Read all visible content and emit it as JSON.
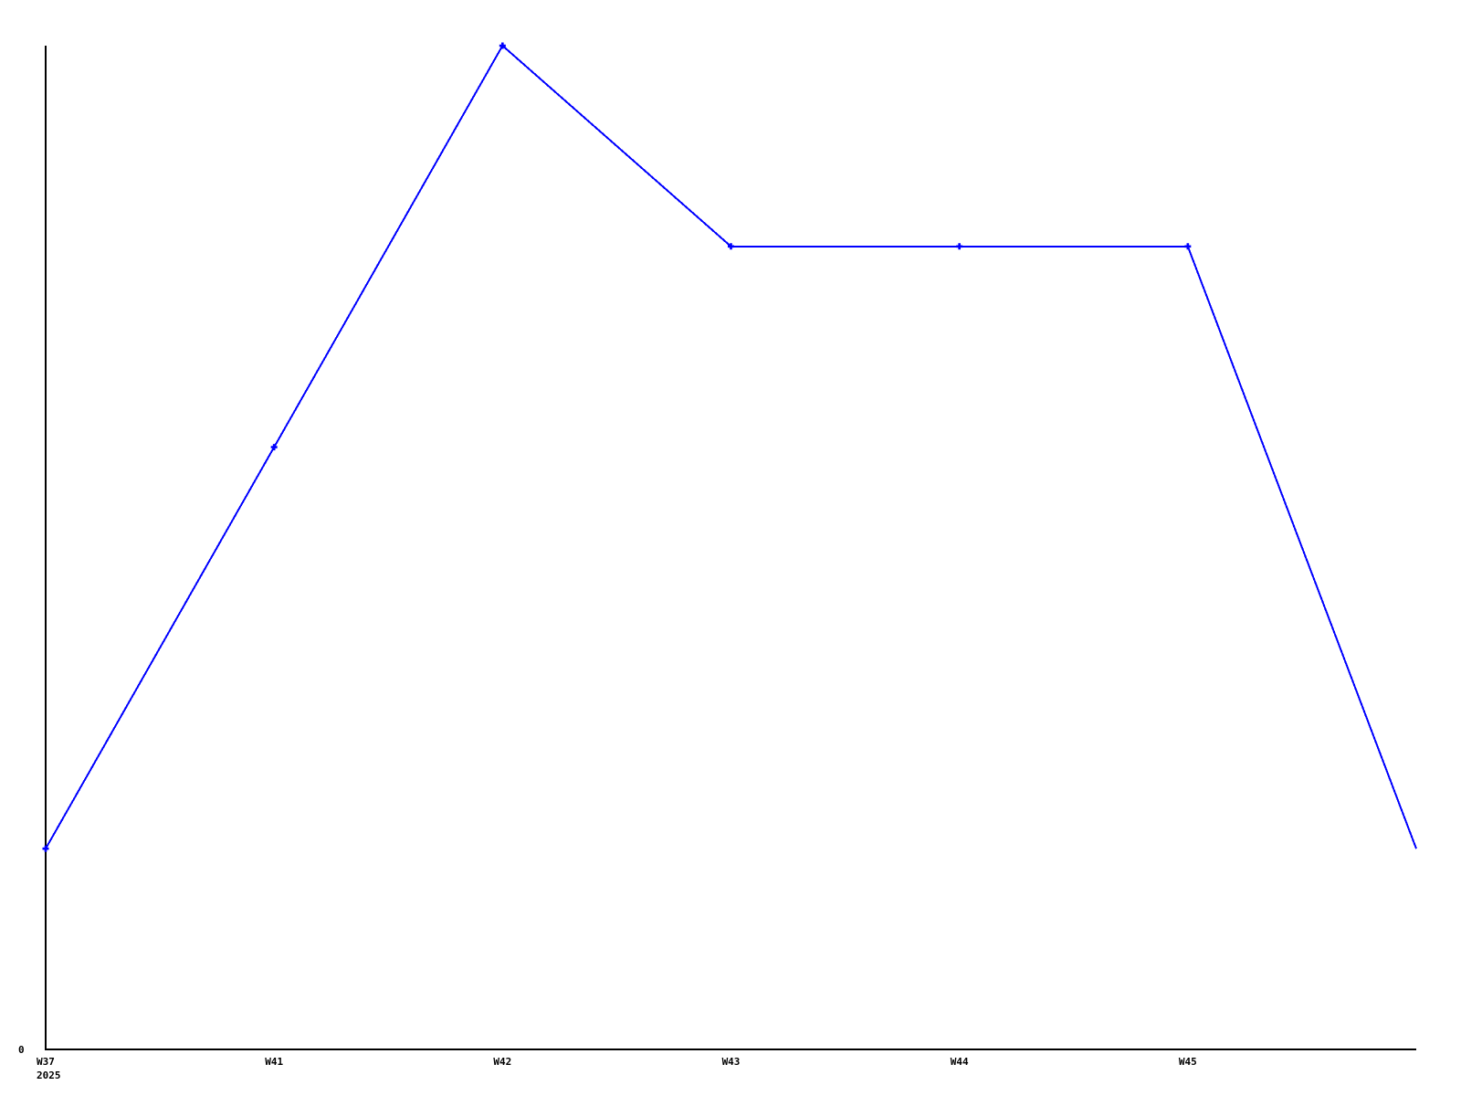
{
  "chart_data": {
    "type": "line",
    "categories": [
      "W37",
      "W41",
      "W42",
      "W43",
      "W44",
      "W45",
      ""
    ],
    "values": [
      1,
      3,
      5,
      4,
      4,
      4,
      1
    ],
    "x_first_sublabel": "2025",
    "y_tick_labels": [
      "0"
    ],
    "ylim": [
      0,
      5
    ],
    "title": "",
    "xlabel": "",
    "ylabel": "",
    "grid": false,
    "legend_position": "none",
    "line_color": "#0000ff",
    "marker_color": "#0000ff",
    "marker_style": "plus",
    "axis_color": "#000000",
    "label_color": "#000000",
    "background_color": "#ffffff"
  }
}
